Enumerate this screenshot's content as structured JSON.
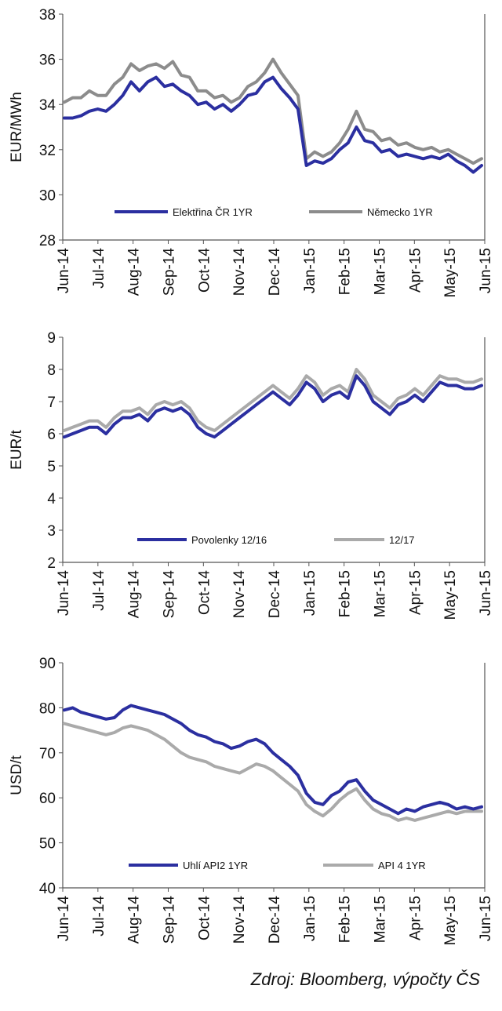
{
  "chart_data": [
    {
      "type": "line",
      "ylabel": "EUR/MWh",
      "ylim": [
        28,
        38
      ],
      "yticks": [
        28,
        30,
        32,
        34,
        36,
        38
      ],
      "xticks": [
        "Jun-14",
        "Jul-14",
        "Aug-14",
        "Sep-14",
        "Oct-14",
        "Nov-14",
        "Dec-14",
        "Jan-15",
        "Feb-15",
        "Mar-15",
        "Apr-15",
        "May-15",
        "Jun-15"
      ],
      "legend": [
        "Elektřina ČR 1YR",
        "Německo 1YR"
      ],
      "series": [
        {
          "name": "Elektřina ČR 1YR",
          "color": "#2b2fa0",
          "values": [
            33.4,
            33.4,
            33.5,
            33.7,
            33.8,
            33.7,
            34.0,
            34.4,
            35.0,
            34.6,
            35.0,
            35.2,
            34.8,
            34.9,
            34.6,
            34.4,
            34.0,
            34.1,
            33.8,
            34.0,
            33.7,
            34.0,
            34.4,
            34.5,
            35.0,
            35.2,
            34.7,
            34.3,
            33.8,
            31.3,
            31.5,
            31.4,
            31.6,
            32.0,
            32.3,
            33.0,
            32.4,
            32.3,
            31.9,
            32.0,
            31.7,
            31.8,
            31.7,
            31.6,
            31.7,
            31.6,
            31.8,
            31.5,
            31.3,
            31.0,
            31.3
          ]
        },
        {
          "name": "Německo 1YR",
          "color": "#8c8c8c",
          "values": [
            34.1,
            34.3,
            34.3,
            34.6,
            34.4,
            34.4,
            34.9,
            35.2,
            35.8,
            35.5,
            35.7,
            35.8,
            35.6,
            35.9,
            35.3,
            35.2,
            34.6,
            34.6,
            34.3,
            34.4,
            34.1,
            34.3,
            34.8,
            35.0,
            35.4,
            36.0,
            35.4,
            34.9,
            34.4,
            31.6,
            31.9,
            31.7,
            31.9,
            32.3,
            32.9,
            33.7,
            32.9,
            32.8,
            32.4,
            32.5,
            32.2,
            32.3,
            32.1,
            32.0,
            32.1,
            31.9,
            32.0,
            31.8,
            31.6,
            31.4,
            31.6
          ]
        }
      ]
    },
    {
      "type": "line",
      "ylabel": "EUR/t",
      "ylim": [
        2,
        9
      ],
      "yticks": [
        2,
        3,
        4,
        5,
        6,
        7,
        8,
        9
      ],
      "xticks": [
        "Jun-14",
        "Jul-14",
        "Aug-14",
        "Sep-14",
        "Oct-14",
        "Nov-14",
        "Dec-14",
        "Jan-15",
        "Feb-15",
        "Mar-15",
        "Apr-15",
        "May-15",
        "Jun-15"
      ],
      "legend": [
        "Povolenky 12/16",
        "12/17"
      ],
      "series": [
        {
          "name": "Povolenky 12/16",
          "color": "#2b2fa0",
          "values": [
            5.9,
            6.0,
            6.1,
            6.2,
            6.2,
            6.0,
            6.3,
            6.5,
            6.5,
            6.6,
            6.4,
            6.7,
            6.8,
            6.7,
            6.8,
            6.6,
            6.2,
            6.0,
            5.9,
            6.1,
            6.3,
            6.5,
            6.7,
            6.9,
            7.1,
            7.3,
            7.1,
            6.9,
            7.2,
            7.6,
            7.4,
            7.0,
            7.2,
            7.3,
            7.1,
            7.8,
            7.5,
            7.0,
            6.8,
            6.6,
            6.9,
            7.0,
            7.2,
            7.0,
            7.3,
            7.6,
            7.5,
            7.5,
            7.4,
            7.4,
            7.5
          ]
        },
        {
          "name": "12/17",
          "color": "#aaaaaa",
          "values": [
            6.1,
            6.2,
            6.3,
            6.4,
            6.4,
            6.2,
            6.5,
            6.7,
            6.7,
            6.8,
            6.6,
            6.9,
            7.0,
            6.9,
            7.0,
            6.8,
            6.4,
            6.2,
            6.1,
            6.3,
            6.5,
            6.7,
            6.9,
            7.1,
            7.3,
            7.5,
            7.3,
            7.1,
            7.4,
            7.8,
            7.6,
            7.2,
            7.4,
            7.5,
            7.3,
            8.0,
            7.7,
            7.2,
            7.0,
            6.8,
            7.1,
            7.2,
            7.4,
            7.2,
            7.5,
            7.8,
            7.7,
            7.7,
            7.6,
            7.6,
            7.7
          ]
        }
      ]
    },
    {
      "type": "line",
      "ylabel": "USD/t",
      "ylim": [
        40,
        90
      ],
      "yticks": [
        40,
        50,
        60,
        70,
        80,
        90
      ],
      "xticks": [
        "Jun-14",
        "Jul-14",
        "Aug-14",
        "Sep-14",
        "Oct-14",
        "Nov-14",
        "Dec-14",
        "Jan-15",
        "Feb-15",
        "Mar-15",
        "Apr-15",
        "May-15",
        "Jun-15"
      ],
      "legend": [
        "Uhlí API2 1YR",
        "API 4 1YR"
      ],
      "series": [
        {
          "name": "Uhlí API2 1YR",
          "color": "#2b2fa0",
          "values": [
            79.5,
            80.0,
            79.0,
            78.5,
            78.0,
            77.5,
            77.8,
            79.5,
            80.5,
            80.0,
            79.5,
            79.0,
            78.5,
            77.5,
            76.5,
            75.0,
            74.0,
            73.5,
            72.5,
            72.0,
            71.0,
            71.5,
            72.5,
            73.0,
            72.0,
            70.0,
            68.5,
            67.0,
            65.0,
            61.0,
            59.0,
            58.5,
            60.5,
            61.5,
            63.5,
            64.0,
            61.5,
            59.5,
            58.5,
            57.5,
            56.5,
            57.5,
            57.0,
            58.0,
            58.5,
            59.0,
            58.5,
            57.5,
            58.0,
            57.5,
            58.0
          ]
        },
        {
          "name": "API 4 1YR",
          "color": "#aaaaaa",
          "values": [
            76.5,
            76.0,
            75.5,
            75.0,
            74.5,
            74.0,
            74.5,
            75.5,
            76.0,
            75.5,
            75.0,
            74.0,
            73.0,
            71.5,
            70.0,
            69.0,
            68.5,
            68.0,
            67.0,
            66.5,
            66.0,
            65.5,
            66.5,
            67.5,
            67.0,
            66.0,
            64.5,
            63.0,
            61.5,
            58.5,
            57.0,
            56.0,
            57.5,
            59.5,
            61.0,
            62.0,
            59.5,
            57.5,
            56.5,
            56.0,
            55.0,
            55.5,
            55.0,
            55.5,
            56.0,
            56.5,
            57.0,
            56.5,
            57.0,
            57.0,
            57.0
          ]
        }
      ]
    }
  ],
  "source": "Zdroj: Bloomberg, výpočty ČS"
}
